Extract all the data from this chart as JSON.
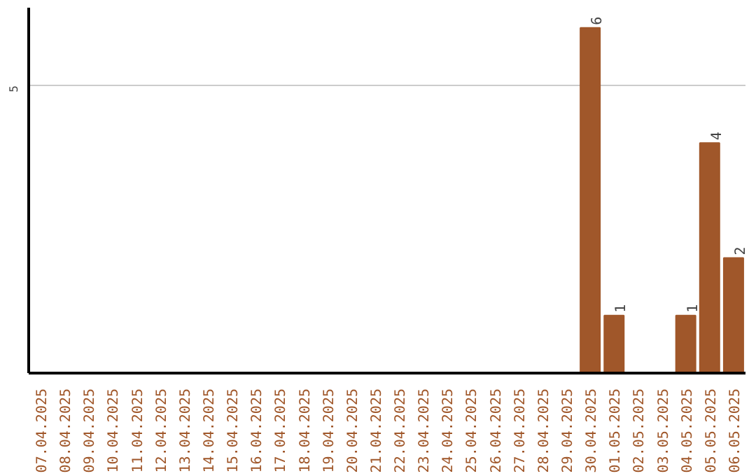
{
  "chart_data": {
    "type": "bar",
    "categories": [
      "07.04.2025",
      "08.04.2025",
      "09.04.2025",
      "10.04.2025",
      "11.04.2025",
      "12.04.2025",
      "13.04.2025",
      "14.04.2025",
      "15.04.2025",
      "16.04.2025",
      "17.04.2025",
      "18.04.2025",
      "19.04.2025",
      "20.04.2025",
      "21.04.2025",
      "22.04.2025",
      "23.04.2025",
      "24.04.2025",
      "25.04.2025",
      "26.04.2025",
      "27.04.2025",
      "28.04.2025",
      "29.04.2025",
      "30.04.2025",
      "01.05.2025",
      "02.05.2025",
      "03.05.2025",
      "04.05.2025",
      "05.05.2025",
      "06.05.2025"
    ],
    "values": [
      null,
      null,
      null,
      null,
      null,
      null,
      null,
      null,
      null,
      null,
      null,
      null,
      null,
      null,
      null,
      null,
      null,
      null,
      null,
      null,
      null,
      null,
      null,
      6,
      1,
      null,
      null,
      1,
      4,
      2
    ],
    "data_labels": true,
    "color": "#a0572a",
    "ylim": [
      0,
      6.35
    ],
    "ref_lines": [
      {
        "axis": "y",
        "value": 5,
        "label": "5",
        "color": "#cccccc"
      }
    ]
  }
}
